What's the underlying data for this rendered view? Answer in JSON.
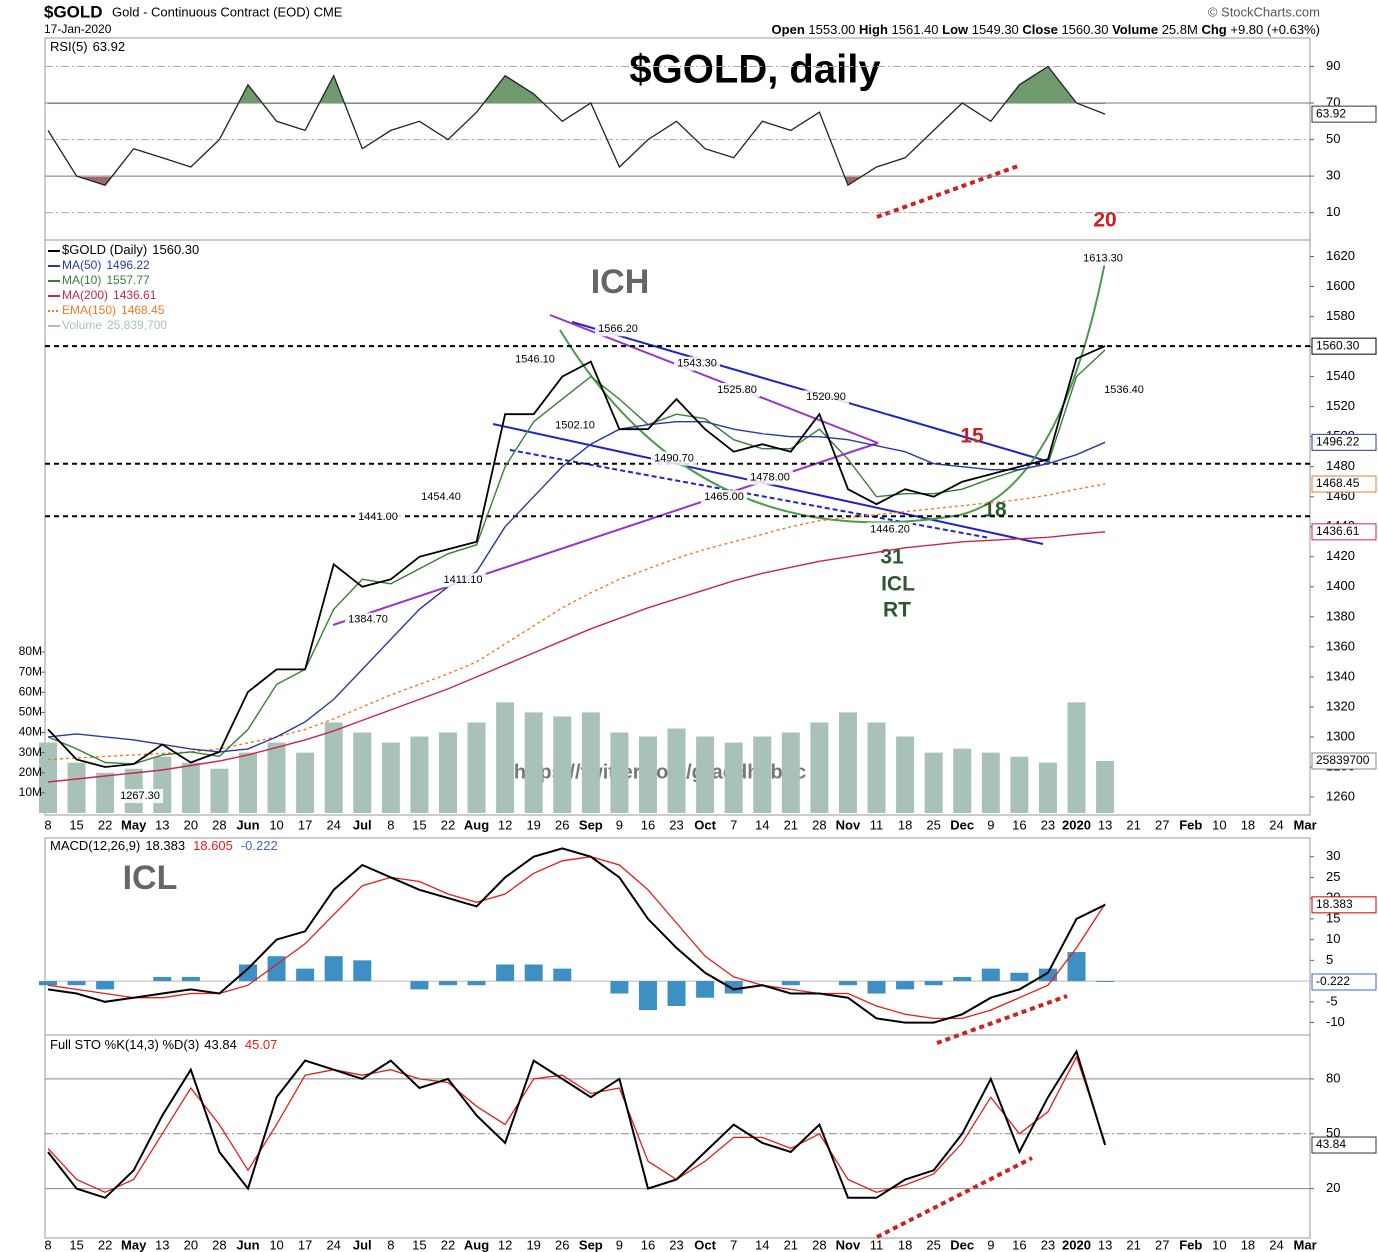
{
  "chart_data": {
    "type": "line",
    "title": "$GOLD, daily",
    "header": {
      "symbol": "$GOLD",
      "name": "Gold - Continuous Contract (EOD) CME",
      "date": "17-Jan-2020",
      "source": "© StockCharts.com",
      "quote": [
        {
          "label": "Open",
          "value": "1553.00"
        },
        {
          "label": "High",
          "value": "1561.40"
        },
        {
          "label": "Low",
          "value": "1549.30"
        },
        {
          "label": "Close",
          "value": "1560.30"
        },
        {
          "label": "Volume",
          "value": "25.8M"
        },
        {
          "label": "Chg",
          "value": "+9.80 (+0.63%)"
        }
      ]
    },
    "categories": [
      "8",
      "15",
      "22",
      "May",
      "13",
      "20",
      "28",
      "Jun",
      "10",
      "17",
      "24",
      "Jul",
      "8",
      "15",
      "22",
      "Aug",
      "12",
      "19",
      "26",
      "Sep",
      "9",
      "16",
      "23",
      "Oct",
      "7",
      "14",
      "21",
      "28",
      "Nov",
      "11",
      "18",
      "25",
      "Dec",
      "9",
      "16",
      "23",
      "2020",
      "13",
      "21",
      "27",
      "Feb",
      "10",
      "18",
      "24",
      "Mar"
    ],
    "annotations": [
      "ICH",
      "ICL",
      "20",
      "15",
      "18",
      "31",
      "ICL",
      "RT",
      "https://twitter.com/graddhybpc"
    ],
    "price": {
      "ylim": [
        1248,
        1631
      ],
      "yticks": [
        1260,
        1280,
        1300,
        1320,
        1340,
        1360,
        1380,
        1400,
        1420,
        1440,
        1460,
        1480,
        1500,
        1520,
        1540,
        1560,
        1580,
        1600,
        1620
      ],
      "reference_lines": [
        1560.3,
        1482,
        1447
      ],
      "price_labels": [
        {
          "value": 1613.3,
          "label": "1613.30"
        },
        {
          "value": 1566.2,
          "label": "1566.20"
        },
        {
          "value": 1546.1,
          "label": "1546.10"
        },
        {
          "value": 1543.3,
          "label": "1543.30"
        },
        {
          "value": 1525.8,
          "label": "1525.80"
        },
        {
          "value": 1520.9,
          "label": "1520.90"
        },
        {
          "value": 1502.1,
          "label": "1502.10"
        },
        {
          "value": 1490.7,
          "label": "1490.70"
        },
        {
          "value": 1478,
          "label": "1478.00"
        },
        {
          "value": 1465,
          "label": "1465.00"
        },
        {
          "value": 1446.2,
          "label": "1446.20"
        },
        {
          "value": 1454.4,
          "label": "1454.40"
        },
        {
          "value": 1441,
          "label": "1441.00"
        },
        {
          "value": 1411.1,
          "label": "1411.10"
        },
        {
          "value": 1384.7,
          "label": "1384.70"
        },
        {
          "value": 1267.3,
          "label": "1267.30"
        },
        {
          "value": 1536.4,
          "label": "1536.40"
        }
      ],
      "series": [
        {
          "name": "$GOLD (Daily)",
          "label": "1560.30",
          "color": "#000000",
          "values": [
            1305,
            1285,
            1280,
            1282,
            1295,
            1283,
            1290,
            1330,
            1345,
            1345,
            1415,
            1400,
            1405,
            1420,
            1425,
            1430,
            1515,
            1515,
            1540,
            1550,
            1505,
            1505,
            1525,
            1505,
            1490,
            1495,
            1490,
            1515,
            1465,
            1455,
            1465,
            1460,
            1470,
            1475,
            1480,
            1485,
            1552,
            1560.3,
            null,
            null,
            null,
            null,
            null,
            null,
            null
          ]
        },
        {
          "name": "MA(50)",
          "label": "1496.22",
          "color": "#2b3a9e",
          "values": [
            1300,
            1302,
            1300,
            1298,
            1295,
            1292,
            1290,
            1292,
            1300,
            1310,
            1325,
            1345,
            1365,
            1385,
            1400,
            1410,
            1440,
            1460,
            1480,
            1495,
            1505,
            1508,
            1510,
            1510,
            1505,
            1502,
            1500,
            1500,
            1498,
            1494,
            1490,
            1482,
            1480,
            1478,
            1478,
            1482,
            1488,
            1496.22,
            null,
            null,
            null,
            null,
            null,
            null,
            null
          ]
        },
        {
          "name": "MA(10)",
          "label": "1557.77",
          "color": "#3a7d3a",
          "values": [
            1300,
            1292,
            1283,
            1282,
            1288,
            1290,
            1287,
            1305,
            1335,
            1345,
            1385,
            1405,
            1402,
            1412,
            1422,
            1428,
            1480,
            1510,
            1525,
            1540,
            1525,
            1508,
            1515,
            1512,
            1498,
            1492,
            1492,
            1505,
            1485,
            1460,
            1462,
            1462,
            1465,
            1472,
            1478,
            1482,
            1540,
            1557.77,
            null,
            null,
            null,
            null,
            null,
            null,
            null
          ]
        },
        {
          "name": "MA(200)",
          "label": "1436.61",
          "color": "#c8264f",
          "values": [
            1270,
            1272,
            1274,
            1276,
            1278,
            1281,
            1284,
            1288,
            1293,
            1298,
            1304,
            1311,
            1318,
            1325,
            1332,
            1340,
            1348,
            1356,
            1364,
            1372,
            1379,
            1386,
            1392,
            1398,
            1404,
            1409,
            1413,
            1417,
            1420,
            1423,
            1426,
            1428,
            1430,
            1431,
            1432,
            1433,
            1435,
            1436.61,
            null,
            null,
            null,
            null,
            null,
            null,
            null
          ]
        },
        {
          "name": "EMA(150)",
          "label": "1468.45",
          "color": "#f07a28",
          "dashed": true,
          "values": [
            1285,
            1286,
            1287,
            1288,
            1289,
            1290,
            1292,
            1296,
            1300,
            1305,
            1312,
            1320,
            1328,
            1335,
            1342,
            1350,
            1362,
            1374,
            1386,
            1396,
            1405,
            1412,
            1419,
            1425,
            1430,
            1435,
            1440,
            1444,
            1446,
            1448,
            1450,
            1452,
            1454,
            1456,
            1458,
            1461,
            1465,
            1468.45,
            null,
            null,
            null,
            null,
            null,
            null,
            null
          ]
        }
      ],
      "volume": {
        "name": "Volume",
        "label": "25,839,700",
        "color": "#a9c2b8",
        "ylim": [
          0,
          82000000
        ],
        "yticks": [
          {
            "value": 10000000,
            "label": "10M"
          },
          {
            "value": 20000000,
            "label": "20M"
          },
          {
            "value": 30000000,
            "label": "30M"
          },
          {
            "value": 40000000,
            "label": "40M"
          },
          {
            "value": 50000000,
            "label": "50M"
          },
          {
            "value": 60000000,
            "label": "60M"
          },
          {
            "value": 70000000,
            "label": "70M"
          },
          {
            "value": 80000000,
            "label": "80M"
          }
        ],
        "values": [
          35000000,
          25000000,
          20000000,
          22000000,
          28000000,
          25000000,
          22000000,
          30000000,
          35000000,
          30000000,
          45000000,
          40000000,
          35000000,
          38000000,
          40000000,
          45000000,
          55000000,
          50000000,
          48000000,
          50000000,
          40000000,
          38000000,
          42000000,
          38000000,
          35000000,
          38000000,
          40000000,
          45000000,
          50000000,
          45000000,
          38000000,
          30000000,
          32000000,
          30000000,
          28000000,
          25000000,
          55000000,
          25839700,
          null,
          null,
          null,
          null,
          null,
          null,
          null
        ]
      }
    },
    "rsi": {
      "name": "RSI(5)",
      "color": "#222222",
      "ylim": [
        -5,
        110
      ],
      "yticks": [
        10,
        30,
        50,
        70,
        90
      ],
      "overbought": 70,
      "oversold": 30,
      "values": [
        55,
        30,
        25,
        45,
        40,
        35,
        50,
        80,
        60,
        55,
        85,
        45,
        55,
        60,
        50,
        65,
        85,
        75,
        60,
        70,
        35,
        50,
        60,
        45,
        40,
        60,
        55,
        65,
        25,
        35,
        40,
        55,
        70,
        60,
        80,
        90,
        70,
        63.92,
        null,
        null,
        null,
        null,
        null,
        null,
        null
      ]
    },
    "macd": {
      "name": "MACD(12,26,9)",
      "ylim": [
        -13,
        34.5
      ],
      "yticks": [
        -10,
        -5,
        5,
        10,
        15,
        20,
        25,
        30
      ],
      "macd": {
        "color": "#000000",
        "values": [
          -2,
          -3,
          -5,
          -4,
          -3,
          -2,
          -3,
          3,
          10,
          12,
          22,
          28,
          25,
          22,
          20,
          18,
          25,
          30,
          32,
          30,
          25,
          15,
          8,
          2,
          -2,
          -1,
          -3,
          -3,
          -4,
          -9,
          -10,
          -10,
          -8,
          -4,
          -2,
          2,
          15,
          18.383,
          null,
          null,
          null,
          null,
          null,
          null,
          null
        ]
      },
      "signal": {
        "color": "#e0201b",
        "values": [
          -1,
          -2,
          -3,
          -4,
          -4,
          -3,
          -3,
          -1,
          4,
          9,
          16,
          23,
          25,
          24,
          21,
          19,
          21,
          26,
          29,
          30,
          28,
          22,
          14,
          6,
          1,
          -1,
          -2,
          -3,
          -3,
          -6,
          -8,
          -9,
          -9,
          -7,
          -4,
          -1,
          8,
          18.605,
          null,
          null,
          null,
          null,
          null,
          null,
          null
        ]
      },
      "histogram": {
        "color": "#3d8fc4",
        "values": [
          -1,
          -1,
          -2,
          0,
          1,
          1,
          0,
          4,
          6,
          3,
          6,
          5,
          0,
          -2,
          -1,
          -1,
          4,
          4,
          3,
          0,
          -3,
          -7,
          -6,
          -4,
          -3,
          0,
          -1,
          0,
          -1,
          -3,
          -2,
          -1,
          1,
          3,
          2,
          3,
          7,
          -0.222,
          null,
          null,
          null,
          null,
          null,
          null,
          null
        ]
      }
    },
    "sto": {
      "name": "Full STO %K(14,3) %D(3)",
      "ylim": [
        -7,
        104
      ],
      "yticks": [
        20,
        50,
        80
      ],
      "k": {
        "color": "#000000",
        "values": [
          40,
          20,
          15,
          30,
          60,
          85,
          40,
          20,
          70,
          90,
          85,
          80,
          90,
          75,
          80,
          60,
          45,
          90,
          80,
          70,
          80,
          20,
          25,
          40,
          55,
          45,
          40,
          55,
          15,
          15,
          25,
          30,
          50,
          80,
          40,
          70,
          95,
          43.84,
          null,
          null,
          null,
          null,
          null,
          null,
          null
        ]
      },
      "d": {
        "color": "#e0201b",
        "values": [
          42,
          25,
          18,
          25,
          50,
          75,
          55,
          30,
          55,
          82,
          85,
          82,
          85,
          80,
          78,
          65,
          55,
          80,
          82,
          72,
          75,
          35,
          25,
          35,
          48,
          48,
          42,
          50,
          25,
          18,
          22,
          28,
          45,
          70,
          50,
          62,
          92,
          45.07,
          null,
          null,
          null,
          null,
          null,
          null,
          null
        ]
      }
    }
  }
}
